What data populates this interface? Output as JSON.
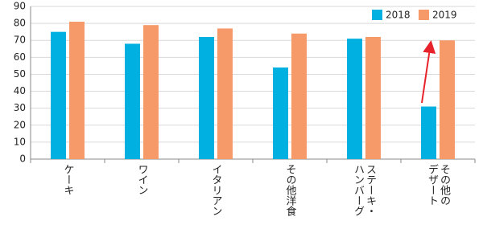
{
  "chart_data": {
    "type": "bar",
    "categories": [
      "ケーキ",
      "ワイン",
      "イタリアン",
      "その他洋食",
      "ステーキ・\nハンバーグ",
      "その他の\nデザート"
    ],
    "series": [
      {
        "name": "2018",
        "color": "#00b0e0",
        "values": [
          75,
          68,
          72,
          54,
          71,
          31
        ]
      },
      {
        "name": "2019",
        "color": "#f79a6a",
        "values": [
          81,
          79,
          77,
          74,
          72,
          70
        ]
      }
    ],
    "ylim": [
      0,
      90
    ],
    "yticks": [
      0,
      10,
      20,
      30,
      40,
      50,
      60,
      70,
      80,
      90
    ],
    "grid": true,
    "legend": "top-right"
  }
}
